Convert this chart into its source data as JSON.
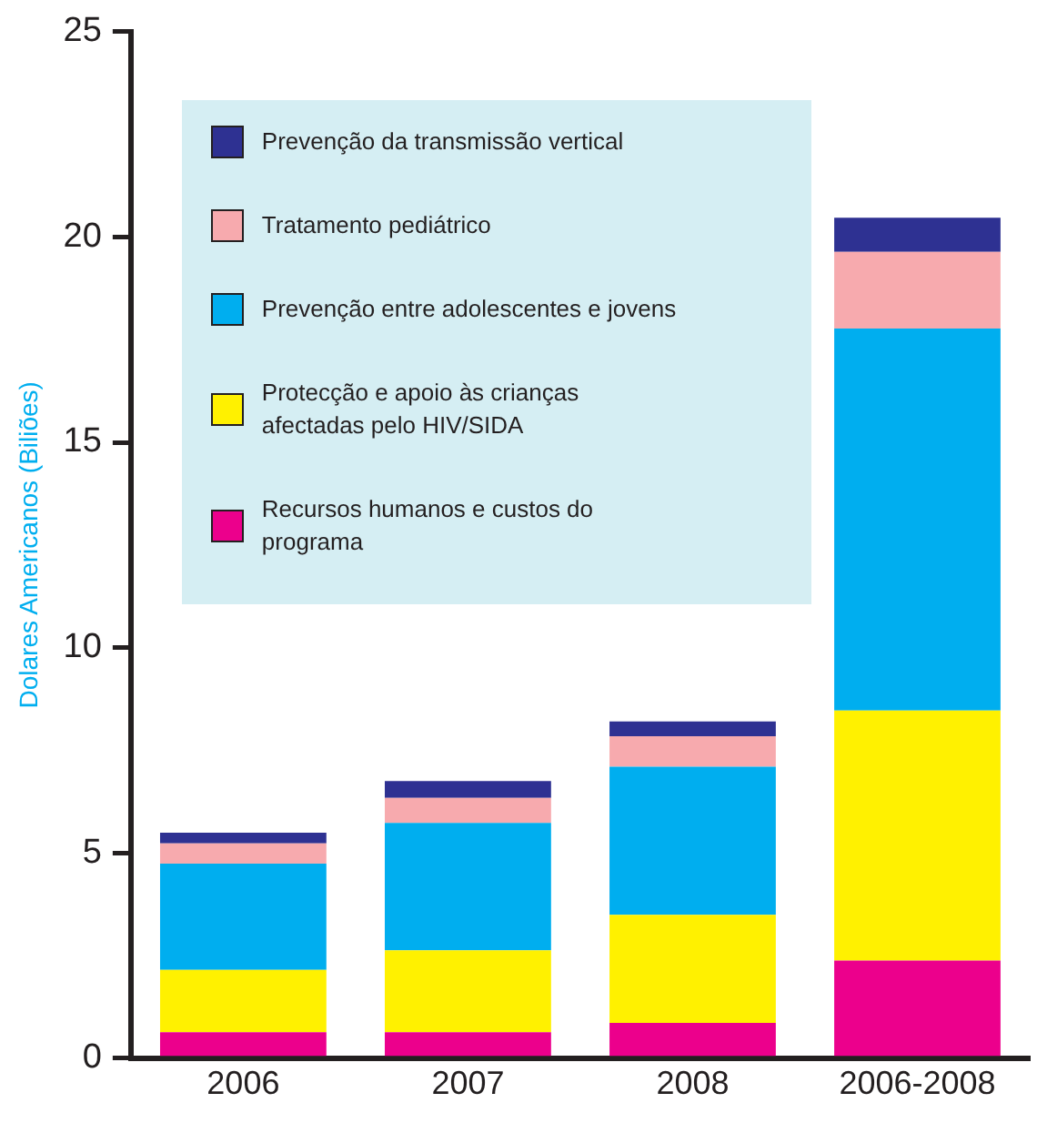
{
  "chart_data": {
    "type": "bar",
    "stacked": true,
    "ylabel": "Dolares Americanos (Biliões)",
    "categories": [
      "2006",
      "2007",
      "2008",
      "2006-2008"
    ],
    "series": [
      {
        "name": "Recursos humanos e custos do programa",
        "color": "#ec008c",
        "values": [
          0.63,
          0.63,
          0.86,
          2.38
        ]
      },
      {
        "name": "Protecção e apoio às crianças afectadas pelo HIV/SIDA",
        "color": "#fff100",
        "values": [
          1.52,
          2.0,
          2.63,
          6.09
        ]
      },
      {
        "name": "Prevenção entre adolescentes e jovens",
        "color": "#00aeef",
        "values": [
          2.59,
          3.1,
          3.61,
          9.3
        ]
      },
      {
        "name": "Tratamento pediátrico",
        "color": "#f7aaae",
        "values": [
          0.49,
          0.61,
          0.74,
          1.87
        ]
      },
      {
        "name": "Prevenção da transmissão vertical",
        "color": "#2e3192",
        "values": [
          0.26,
          0.41,
          0.36,
          0.83
        ]
      }
    ],
    "ylim": [
      0,
      25
    ],
    "yticks": [
      0,
      5,
      10,
      15,
      20,
      25
    ],
    "grid": false,
    "legend": "top left"
  }
}
